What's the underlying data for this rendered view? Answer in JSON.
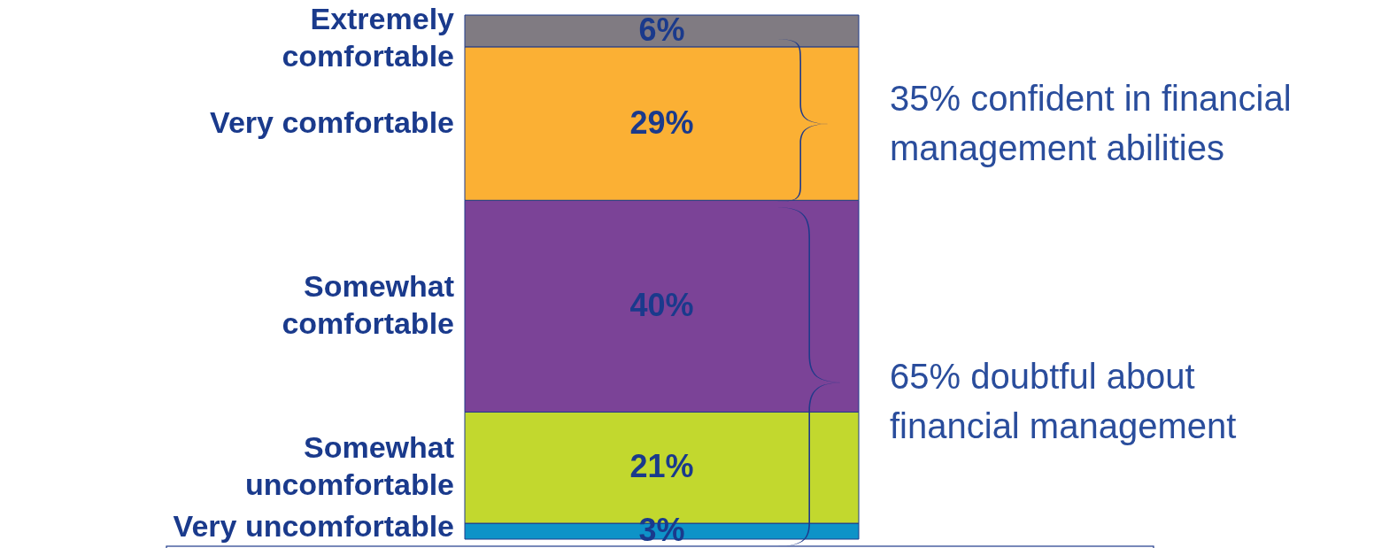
{
  "chart_data": {
    "type": "bar",
    "stacked": true,
    "categories": [
      null
    ],
    "series": [
      {
        "name": "Very uncomfortable",
        "color": "#0e93c8",
        "values": [
          3
        ],
        "value_labels": [
          "3%"
        ]
      },
      {
        "name": "Somewhat\nuncomfortable",
        "color": "#c2d82e",
        "values": [
          21
        ],
        "value_labels": [
          "21%"
        ]
      },
      {
        "name": "Somewhat\ncomfortable",
        "color": "#7b4397",
        "values": [
          40
        ],
        "value_labels": [
          "40%"
        ]
      },
      {
        "name": "Very comfortable",
        "color": "#fbb034",
        "values": [
          29
        ],
        "value_labels": [
          "29%"
        ]
      },
      {
        "name": "Extremely\ncomfortable",
        "color": "#807b82",
        "values": [
          6
        ],
        "value_labels": [
          "6%"
        ]
      }
    ],
    "annotations": [
      "35% confident in financial\nmanagement abilities",
      "65% doubtful about\nfinancial management"
    ],
    "legend": false
  }
}
